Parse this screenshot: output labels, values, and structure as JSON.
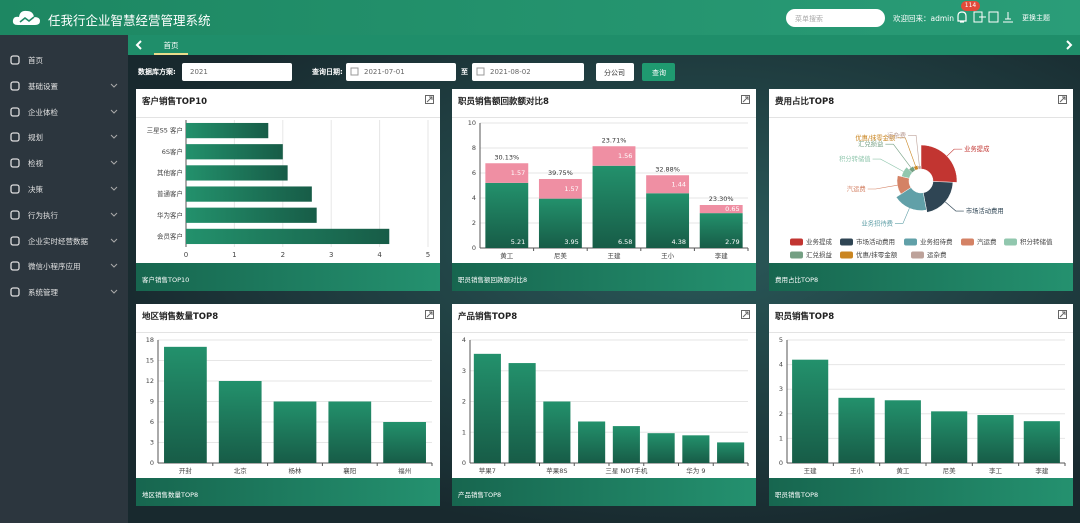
{
  "header": {
    "title": "任我行企业智慧经营管理系统",
    "search_placeholder": "菜单搜索",
    "welcome": "欢迎回来：admin",
    "badge": 114,
    "theme": "更换主题"
  },
  "sidebar": {
    "items": [
      "首页",
      "基础设置",
      "企业体检",
      "规划",
      "检视",
      "决策",
      "行为执行",
      "企业实时经营数据",
      "微信小程序应用",
      "系统管理"
    ]
  },
  "tabs": [
    "首页"
  ],
  "filters": {
    "scheme_label": "数据库方案:",
    "scheme_value": "2021",
    "date_label": "查询日期:",
    "date_from": "2021-07-01",
    "date_sep": "至",
    "date_to": "2021-08-02",
    "branch_button": "分公司",
    "query_button": "查询"
  },
  "chart_data": [
    {
      "type": "hbar",
      "title": "客户销售TOP10",
      "footer": "客户销售TOP10",
      "categories": [
        "会员客户",
        "华为客户",
        "普通客户",
        "其他客户",
        "6S客户",
        "三星S5 客户"
      ],
      "values": [
        4.2,
        2.7,
        2.6,
        2.1,
        2.0,
        1.7
      ],
      "color": "#23916c",
      "xlim": [
        0,
        5
      ],
      "xticks": [
        0,
        1,
        2,
        3,
        4,
        5
      ],
      "grid": true
    },
    {
      "type": "stacked",
      "title": "职员销售额回款额对比8",
      "footer": "职员销售额回款额对比8",
      "categories": [
        "黄工",
        "尼美",
        "王建",
        "王小",
        "李建"
      ],
      "series": [
        {
          "color": "#23916c",
          "values": [
            5.21,
            3.95,
            6.58,
            4.38,
            2.79
          ]
        },
        {
          "color": "#ef8fa3",
          "values": [
            1.57,
            1.57,
            1.56,
            1.44,
            0.65
          ]
        }
      ],
      "ratios": [
        30.13,
        39.75,
        23.71,
        32.88,
        23.3
      ],
      "ratio_labels": [
        "30.13%",
        "39.75%",
        "23.71%",
        "32.88%",
        "23.30%"
      ],
      "ylim": [
        0,
        10
      ],
      "yticks": [
        0,
        2,
        4,
        6,
        8,
        10
      ],
      "grid": true
    },
    {
      "type": "pie",
      "rose": true,
      "title": "费用占比TOP8",
      "footer": "费用占比TOP8",
      "categories": [
        "业务提成",
        "市场活动费用",
        "业务招待费",
        "汽运费",
        "积分转储值",
        "汇兑损益",
        "优惠/抹零金额",
        "运杂费"
      ],
      "values": [
        30,
        25,
        22,
        15,
        10,
        6,
        5,
        4
      ],
      "colors": [
        "#c23531",
        "#2f4554",
        "#61a0a8",
        "#d48265",
        "#91c7ae",
        "#749f83",
        "#ca8622",
        "#bda29a"
      ],
      "legend": "bottom"
    },
    {
      "type": "bar",
      "title": "地区销售数量TOP8",
      "footer": "地区销售数量TOP8",
      "categories": [
        "开封",
        "北京",
        "杨林",
        "襄阳",
        "福州"
      ],
      "values": [
        17,
        12,
        9,
        9,
        6
      ],
      "color": "#23916c",
      "ylim": [
        0,
        18
      ],
      "yticks": [
        0,
        3,
        6,
        9,
        12,
        15,
        18
      ],
      "grid": true
    },
    {
      "type": "bar",
      "title": "产品销售TOP8",
      "footer": "产品销售TOP8",
      "categories": [
        "苹果7",
        null,
        "苹果8S",
        null,
        "三星 NOT手机",
        null,
        "华为 9",
        null
      ],
      "values": [
        3.55,
        3.25,
        2.0,
        1.35,
        1.2,
        0.97,
        0.9,
        0.67
      ],
      "color": "#23916c",
      "ylim": [
        0,
        4
      ],
      "yticks": [
        0,
        1,
        2,
        3,
        4
      ],
      "grid": true
    },
    {
      "type": "bar",
      "title": "职员销售TOP8",
      "footer": "职员销售TOP8",
      "categories": [
        "王建",
        "王小",
        "黄工",
        "尼美",
        "李工",
        "李建"
      ],
      "values": [
        4.2,
        2.65,
        2.55,
        2.1,
        1.95,
        1.7
      ],
      "color": "#23916c",
      "ylim": [
        0,
        5
      ],
      "yticks": [
        0,
        1,
        2,
        3,
        4,
        5
      ],
      "grid": true
    }
  ]
}
